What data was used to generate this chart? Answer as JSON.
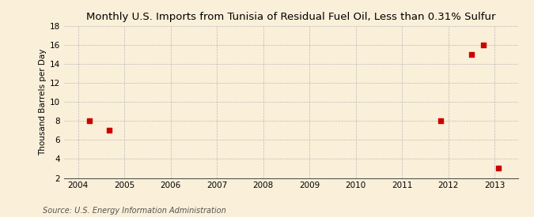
{
  "title": "Monthly U.S. Imports from Tunisia of Residual Fuel Oil, Less than 0.31% Sulfur",
  "ylabel": "Thousand Barrels per Day",
  "source_text": "Source: U.S. Energy Information Administration",
  "background_color": "#faefd8",
  "plot_bg_color": "#faefd8",
  "data_x": [
    2004.25,
    2004.67,
    2011.83,
    2012.5,
    2012.75,
    2013.08
  ],
  "data_y": [
    8,
    7,
    8,
    15,
    16,
    3
  ],
  "marker_color": "#cc0000",
  "marker_size": 16,
  "xlim": [
    2003.7,
    2013.5
  ],
  "ylim": [
    2,
    18
  ],
  "yticks": [
    2,
    4,
    6,
    8,
    10,
    12,
    14,
    16,
    18
  ],
  "xticks": [
    2004,
    2005,
    2006,
    2007,
    2008,
    2009,
    2010,
    2011,
    2012,
    2013
  ],
  "grid_color": "#bbbbbb",
  "title_fontsize": 9.5,
  "label_fontsize": 7.5,
  "tick_fontsize": 7.5,
  "source_fontsize": 7.0
}
